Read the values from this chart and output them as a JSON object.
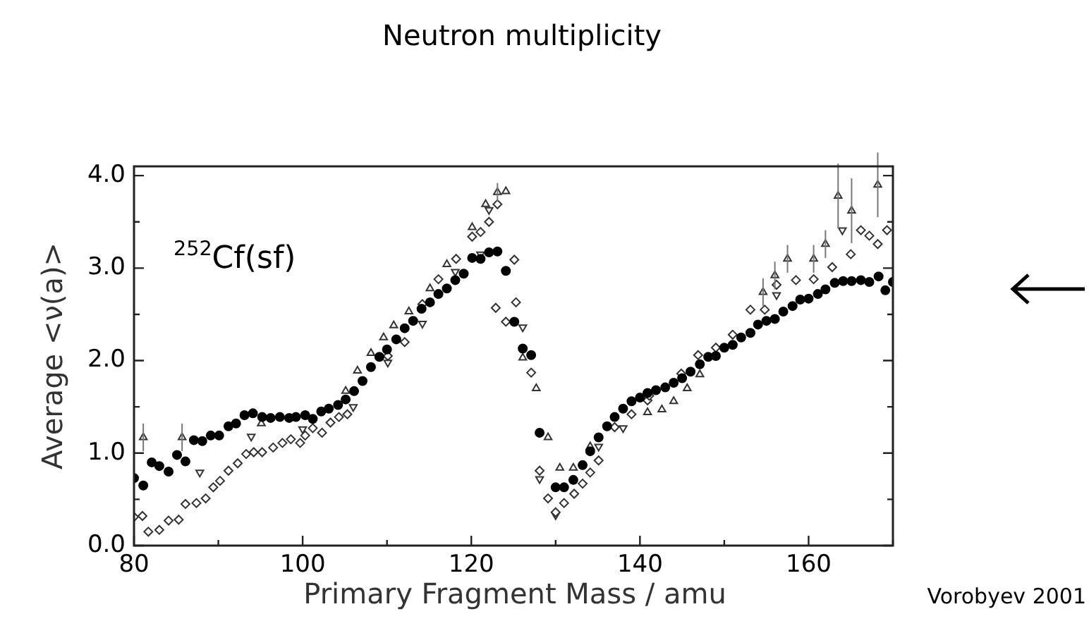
{
  "chart_data": {
    "type": "scatter",
    "title": "Neutron multiplicity",
    "xlabel": "Primary Fragment Mass / amu",
    "ylabel": "Average <ν(a)>",
    "annotations": [
      "$^{252}$Cf(sf)",
      "Vorobyev 2001"
    ],
    "xlim": [
      80,
      170
    ],
    "xticks": [
      80,
      {
        "value": 90,
        "label": null
      },
      100,
      {
        "value": 110,
        "label": null
      },
      120,
      {
        "value": 130,
        "label": null
      },
      140,
      {
        "value": 150,
        "label": null
      },
      160,
      {
        "value": 170,
        "label": null
      }
    ],
    "ylim": [
      0,
      4.1
    ],
    "yticks": [
      {
        "value": 0,
        "label": "0.0"
      },
      {
        "value": 0.5,
        "label": null
      },
      {
        "value": 1,
        "label": "1.0"
      },
      {
        "value": 1.5,
        "label": null
      },
      {
        "value": 2,
        "label": "2.0"
      },
      {
        "value": 2.5,
        "label": null
      },
      {
        "value": 3,
        "label": "3.0"
      },
      {
        "value": 3.5,
        "label": null
      },
      {
        "value": 4,
        "label": "4.0"
      }
    ],
    "grid": false,
    "legend": false,
    "series": [
      {
        "color": "#000000",
        "marker": "circle",
        "x": [
          80.0,
          81.1,
          82.1,
          83.0,
          84.1,
          85.1,
          86.1,
          87.1,
          88.1,
          89.1,
          90.1,
          91.2,
          92.1,
          93.1,
          94.1,
          95.2,
          96.2,
          97.3,
          98.4,
          99.2,
          100.3,
          101.2,
          102.2,
          103.1,
          104.2,
          105.1,
          106.1,
          107.1,
          108.1,
          109.1,
          110.0,
          111.1,
          112.1,
          113.1,
          114.1,
          115.1,
          116.1,
          117.1,
          118.1,
          119.1,
          120.1,
          121.1,
          122.1,
          123.1,
          124.1,
          125.1,
          126.1,
          127.1,
          128.1,
          130.0,
          131.0,
          132.1,
          133.2,
          134.1,
          135.1,
          136.1,
          137.0,
          138.0,
          139.0,
          140.0,
          140.9,
          141.9,
          143.0,
          144.0,
          145.0,
          146.0,
          147.1,
          148.1,
          149.0,
          150.0,
          151.0,
          152.0,
          153.1,
          154.0,
          155.0,
          156.0,
          157.0,
          158.1,
          159.0,
          160.0,
          161.1,
          162.0,
          163.1,
          164.1,
          165.1,
          166.2,
          167.2,
          168.3,
          169.1,
          170.0
        ],
        "values": [
          0.73,
          0.65,
          0.9,
          0.86,
          0.8,
          0.98,
          0.91,
          1.14,
          1.13,
          1.19,
          1.19,
          1.29,
          1.32,
          1.41,
          1.43,
          1.39,
          1.38,
          1.39,
          1.38,
          1.39,
          1.41,
          1.37,
          1.45,
          1.48,
          1.52,
          1.58,
          1.67,
          1.78,
          1.93,
          2.04,
          2.12,
          2.23,
          2.35,
          2.43,
          2.56,
          2.63,
          2.72,
          2.78,
          2.87,
          2.94,
          3.11,
          3.1,
          3.17,
          3.18,
          2.97,
          2.42,
          2.13,
          2.06,
          1.22,
          0.63,
          0.63,
          0.71,
          0.87,
          1.02,
          1.17,
          1.29,
          1.39,
          1.48,
          1.56,
          1.6,
          1.65,
          1.68,
          1.71,
          1.76,
          1.81,
          1.88,
          1.96,
          2.04,
          2.05,
          2.14,
          2.17,
          2.25,
          2.3,
          2.39,
          2.43,
          2.45,
          2.53,
          2.59,
          2.66,
          2.67,
          2.72,
          2.77,
          2.84,
          2.86,
          2.86,
          2.87,
          2.85,
          2.91,
          2.76,
          2.85
        ]
      },
      {
        "color": "#333333",
        "marker": "diamond",
        "x": [
          80.0,
          81.0,
          81.7,
          83.0,
          84.1,
          85.3,
          86.1,
          87.4,
          88.5,
          89.4,
          90.2,
          91.2,
          92.3,
          93.3,
          94.2,
          95.2,
          96.5,
          97.6,
          98.6,
          99.7,
          100.3,
          101.2,
          102.3,
          103.3,
          104.3,
          105.3,
          110.1,
          112.1,
          114.2,
          116.1,
          118.2,
          120.1,
          121.1,
          122.1,
          123.1,
          122.9,
          124.1,
          125.1,
          125.3,
          127.1,
          128.1,
          129.1,
          130.0,
          131.0,
          132.2,
          133.2,
          134.1,
          135.1,
          137.0,
          139.0,
          140.9,
          141.1,
          144.9,
          146.9,
          149.0,
          151.0,
          153.1,
          154.8,
          156.2,
          158.5,
          160.6,
          162.8,
          165.0,
          166.2,
          167.2,
          168.2,
          169.3
        ],
        "values": [
          0.31,
          0.32,
          0.15,
          0.17,
          0.27,
          0.28,
          0.45,
          0.46,
          0.51,
          0.63,
          0.7,
          0.81,
          0.89,
          0.99,
          1.01,
          1.01,
          1.06,
          1.11,
          1.15,
          1.11,
          1.19,
          1.27,
          1.22,
          1.33,
          1.39,
          1.42,
          2.05,
          2.2,
          2.61,
          2.88,
          3.1,
          3.34,
          3.39,
          3.5,
          3.69,
          2.57,
          2.42,
          3.09,
          2.63,
          1.87,
          0.81,
          0.51,
          0.36,
          0.46,
          0.56,
          0.67,
          0.79,
          0.92,
          1.28,
          1.42,
          1.57,
          1.62,
          1.86,
          2.06,
          2.14,
          2.28,
          2.55,
          2.55,
          2.82,
          2.87,
          2.88,
          3.01,
          3.15,
          3.41,
          3.35,
          3.26,
          3.41
        ]
      },
      {
        "color": "#333333",
        "marker": "triangle",
        "x": [
          81.1,
          85.7,
          88.9,
          95.1,
          105.1,
          106.5,
          108.1,
          109.6,
          110.8,
          112.6,
          115.1,
          117.1,
          120.1,
          121.7,
          123.1,
          124.1,
          126.1,
          127.7,
          129.1,
          130.5,
          132.1,
          134.1,
          137.0,
          140.9,
          142.6,
          144.0,
          145.6,
          147.1,
          154.6,
          156.0,
          157.5,
          160.6,
          162.0,
          163.5,
          165.1,
          168.2
        ],
        "values": [
          1.17,
          1.17,
          null,
          1.32,
          1.67,
          1.89,
          2.08,
          2.25,
          2.38,
          2.53,
          2.78,
          3.04,
          3.44,
          3.69,
          3.82,
          3.83,
          2.03,
          1.7,
          1.17,
          0.84,
          0.84,
          1.07,
          null,
          1.44,
          1.47,
          1.56,
          1.7,
          1.85,
          2.74,
          2.92,
          3.1,
          3.1,
          3.26,
          3.78,
          3.62,
          3.9
        ],
        "errors": [
          0.15,
          0.15,
          null,
          null,
          null,
          null,
          null,
          null,
          null,
          null,
          null,
          null,
          null,
          null,
          0.1,
          null,
          null,
          null,
          null,
          null,
          null,
          null,
          null,
          null,
          null,
          null,
          null,
          null,
          0.15,
          0.15,
          0.15,
          0.15,
          0.15,
          0.35,
          0.35,
          0.35
        ]
      },
      {
        "color": "#333333",
        "marker": "triangle-down",
        "x": [
          87.8,
          93.9,
          100.0,
          106.0,
          110.1,
          114.2,
          118.1,
          121.1,
          122.1,
          126.1,
          128.1,
          130.0,
          135.1,
          138.0,
          156.2,
          164.0
        ],
        "values": [
          0.79,
          1.18,
          1.26,
          1.5,
          1.98,
          2.4,
          2.96,
          3.15,
          3.63,
          2.36,
          0.72,
          0.33,
          1.07,
          1.27,
          2.71,
          3.41
        ]
      }
    ]
  }
}
